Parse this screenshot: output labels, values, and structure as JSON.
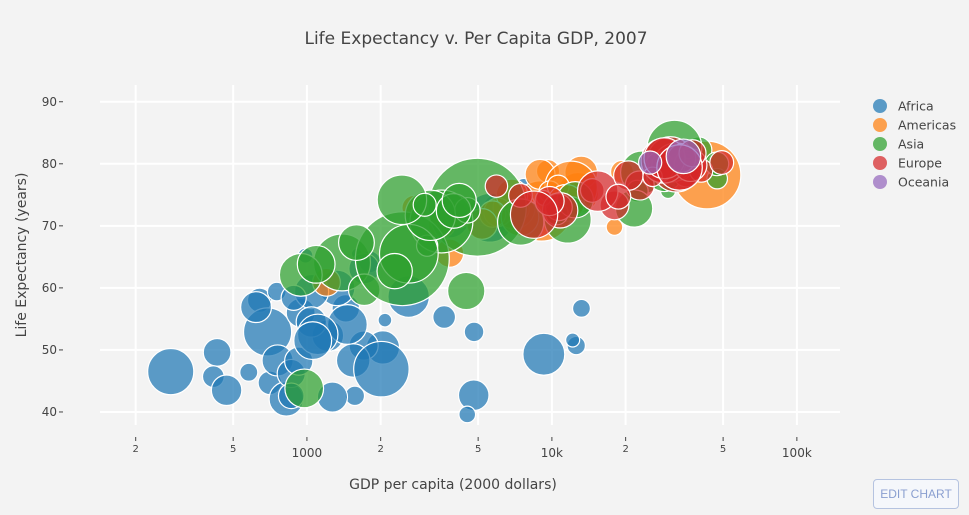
{
  "chart_data": {
    "type": "scatter",
    "title": "Life Expectancy v. Per Capita GDP, 2007",
    "xlabel": "GDP per capita (2000 dollars)",
    "ylabel": "Life Expectancy (years)",
    "x_scale": "log",
    "xlim": [
      143,
      150000
    ],
    "ylim": [
      37.9,
      92.7
    ],
    "x_ticks": [
      {
        "value": 200,
        "label": "2",
        "minor": true
      },
      {
        "value": 500,
        "label": "5",
        "minor": true
      },
      {
        "value": 1000,
        "label": "1000",
        "minor": false
      },
      {
        "value": 2000,
        "label": "2",
        "minor": true
      },
      {
        "value": 5000,
        "label": "5",
        "minor": true
      },
      {
        "value": 10000,
        "label": "10k",
        "minor": false
      },
      {
        "value": 20000,
        "label": "2",
        "minor": true
      },
      {
        "value": 50000,
        "label": "5",
        "minor": true
      },
      {
        "value": 100000,
        "label": "100k",
        "minor": false
      }
    ],
    "y_ticks": [
      40,
      50,
      60,
      70,
      80,
      90
    ],
    "grid": true,
    "legend_position": "top-right",
    "marker_size_encodes": "population (millions)",
    "series": [
      {
        "name": "Africa",
        "color": "#1f77b4",
        "points": [
          [
            6223,
            72.3,
            33.3
          ],
          [
            4797,
            42.7,
            12.4
          ],
          [
            1441,
            56.7,
            8.1
          ],
          [
            12570,
            50.7,
            1.6
          ],
          [
            1217,
            52.3,
            14.3
          ],
          [
            430,
            49.6,
            8.4
          ],
          [
            2042,
            50.4,
            17.7
          ],
          [
            706,
            44.7,
            4.4
          ],
          [
            1704,
            50.7,
            10.2
          ],
          [
            986,
            65.2,
            0.7
          ],
          [
            278,
            46.5,
            64.6
          ],
          [
            3633,
            55.3,
            3.8
          ],
          [
            1545,
            48.3,
            18.0
          ],
          [
            2082,
            54.8,
            0.5
          ],
          [
            5581,
            71.3,
            80.3
          ],
          [
            12154,
            51.6,
            0.55
          ],
          [
            641,
            58.0,
            4.9
          ],
          [
            691,
            52.9,
            76.5
          ],
          [
            13206,
            56.7,
            1.45
          ],
          [
            753,
            59.4,
            1.7
          ],
          [
            1328,
            60.0,
            22.9
          ],
          [
            943,
            56.0,
            9.9
          ],
          [
            579,
            46.4,
            1.5
          ],
          [
            1463,
            54.1,
            35.6
          ],
          [
            1569,
            42.6,
            2.0
          ],
          [
            415,
            45.7,
            3.2
          ],
          [
            12057,
            74.0,
            6.0
          ],
          [
            1045,
            59.4,
            19.2
          ],
          [
            759,
            48.3,
            13.3
          ],
          [
            1042,
            54.5,
            12.0
          ],
          [
            1803,
            64.2,
            3.3
          ],
          [
            10957,
            72.8,
            1.25
          ],
          [
            3820,
            71.2,
            33.8
          ],
          [
            824,
            42.1,
            20.0
          ],
          [
            4811,
            52.9,
            2.1
          ],
          [
            620,
            56.9,
            12.9
          ],
          [
            2014,
            46.9,
            135
          ],
          [
            7670,
            76.4,
            0.8
          ],
          [
            863,
            46.2,
            8.9
          ],
          [
            1598,
            65.5,
            0.2
          ],
          [
            1712,
            63.1,
            12.3
          ],
          [
            863,
            42.6,
            6.1
          ],
          [
            926,
            48.2,
            9.1
          ],
          [
            9270,
            49.3,
            44.0
          ],
          [
            2602,
            58.6,
            42.3
          ],
          [
            4513,
            39.6,
            1.1
          ],
          [
            1107,
            52.5,
            38.1
          ],
          [
            883,
            58.4,
            5.7
          ],
          [
            7093,
            73.9,
            10.3
          ],
          [
            1056,
            51.5,
            29.2
          ],
          [
            1271,
            42.4,
            11.7
          ],
          [
            470,
            43.5,
            12.3
          ]
        ]
      },
      {
        "name": "Americas",
        "color": "#ff7f0e",
        "points": [
          [
            12779,
            75.3,
            40.3
          ],
          [
            3822,
            65.6,
            9.1
          ],
          [
            9066,
            72.4,
            190
          ],
          [
            36319,
            80.7,
            33.4
          ],
          [
            13172,
            78.6,
            16.3
          ],
          [
            7007,
            72.9,
            44.2
          ],
          [
            9645,
            78.8,
            4.1
          ],
          [
            8948,
            78.3,
            11.4
          ],
          [
            6025,
            72.2,
            9.3
          ],
          [
            6873,
            75.0,
            13.8
          ],
          [
            5728,
            71.9,
            6.9
          ],
          [
            5186,
            70.3,
            12.6
          ],
          [
            1202,
            60.9,
            8.5
          ],
          [
            3548,
            70.2,
            7.5
          ],
          [
            7321,
            72.6,
            2.8
          ],
          [
            11978,
            76.2,
            108.7
          ],
          [
            2749,
            72.9,
            5.7
          ],
          [
            9809,
            75.5,
            3.2
          ],
          [
            4173,
            71.8,
            6.7
          ],
          [
            7409,
            71.4,
            28.7
          ],
          [
            19329,
            78.7,
            3.9
          ],
          [
            18009,
            69.8,
            1.06
          ],
          [
            42952,
            78.2,
            301
          ],
          [
            10611,
            76.4,
            3.4
          ],
          [
            11416,
            73.7,
            26.1
          ]
        ]
      },
      {
        "name": "Asia",
        "color": "#2ca02c",
        "points": [
          [
            975,
            43.8,
            31.9
          ],
          [
            29796,
            75.6,
            0.7
          ],
          [
            1391,
            64.1,
            150
          ],
          [
            1714,
            59.7,
            14.1
          ],
          [
            4959,
            73.0,
            1318
          ],
          [
            39725,
            82.2,
            6.98
          ],
          [
            2452,
            64.7,
            1110
          ],
          [
            3541,
            70.7,
            223
          ],
          [
            11606,
            71.0,
            69.5
          ],
          [
            4471,
            59.5,
            27.5
          ],
          [
            25523,
            80.7,
            6.4
          ],
          [
            31656,
            82.6,
            127.5
          ],
          [
            4519,
            72.5,
            6.05
          ],
          [
            1593,
            67.3,
            23.3
          ],
          [
            23348,
            78.6,
            49.0
          ],
          [
            47307,
            77.6,
            2.5
          ],
          [
            10461,
            72.0,
            3.9
          ],
          [
            12452,
            74.2,
            24.8
          ],
          [
            3096,
            66.8,
            2.9
          ],
          [
            944,
            62.1,
            47.8
          ],
          [
            1091,
            63.8,
            28.9
          ],
          [
            22316,
            75.6,
            3.2
          ],
          [
            2606,
            65.5,
            169
          ],
          [
            3190,
            71.7,
            91.1
          ],
          [
            21655,
            72.8,
            27.6
          ],
          [
            47143,
            80.0,
            4.55
          ],
          [
            3970,
            72.4,
            20.4
          ],
          [
            4185,
            74.1,
            19.3
          ],
          [
            28718,
            78.4,
            23.2
          ],
          [
            7458,
            70.6,
            65.1
          ],
          [
            2442,
            74.2,
            85.3
          ],
          [
            3025,
            73.4,
            4.0
          ],
          [
            2281,
            62.7,
            22.2
          ]
        ]
      },
      {
        "name": "Europe",
        "color": "#d62728",
        "points": [
          [
            5937,
            76.4,
            3.6
          ],
          [
            36126,
            79.8,
            8.2
          ],
          [
            33693,
            79.4,
            10.4
          ],
          [
            7446,
            74.9,
            4.55
          ],
          [
            10681,
            73.0,
            7.3
          ],
          [
            14619,
            75.7,
            4.5
          ],
          [
            22833,
            76.5,
            10.2
          ],
          [
            35278,
            78.3,
            5.5
          ],
          [
            33207,
            79.3,
            5.2
          ],
          [
            30470,
            80.7,
            61.1
          ],
          [
            32170,
            79.4,
            82.4
          ],
          [
            27538,
            79.5,
            10.7
          ],
          [
            18009,
            73.3,
            9.96
          ],
          [
            36181,
            81.8,
            0.3
          ],
          [
            40676,
            78.9,
            4.1
          ],
          [
            28570,
            80.5,
            58.1
          ],
          [
            9254,
            74.5,
            0.68
          ],
          [
            36798,
            79.8,
            16.6
          ],
          [
            49357,
            80.2,
            4.6
          ],
          [
            15390,
            75.6,
            38.5
          ],
          [
            20510,
            78.1,
            10.6
          ],
          [
            10808,
            72.5,
            22.3
          ],
          [
            9787,
            74.0,
            10.2
          ],
          [
            18678,
            74.7,
            5.4
          ],
          [
            25768,
            77.9,
            2.0
          ],
          [
            28821,
            80.9,
            40.4
          ],
          [
            33860,
            80.9,
            9.0
          ],
          [
            37506,
            81.7,
            7.55
          ],
          [
            8458,
            71.8,
            71.2
          ],
          [
            33203,
            79.4,
            60.8
          ]
        ]
      },
      {
        "name": "Oceania",
        "color": "#9467bd",
        "points": [
          [
            34435,
            81.2,
            20.4
          ],
          [
            25185,
            80.2,
            4.1
          ]
        ]
      }
    ]
  },
  "toolbar": {
    "edit_label": "EDIT CHART"
  }
}
